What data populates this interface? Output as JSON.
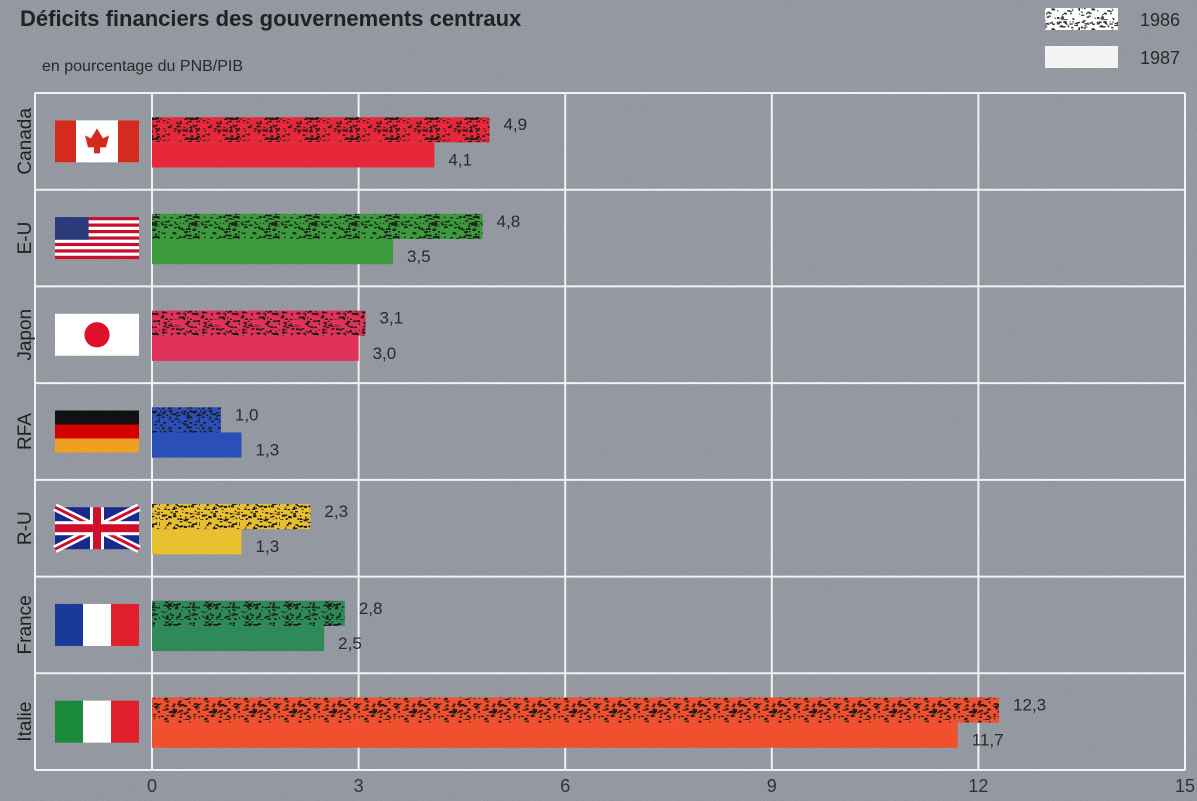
{
  "chart_data": {
    "type": "bar",
    "orientation": "horizontal",
    "title": "Déficits financiers des gouvernements centraux",
    "subtitle": "en pourcentage du PNB/PIB",
    "categories": [
      "Canada",
      "E-U",
      "Japon",
      "RFA",
      "R-U",
      "France",
      "Italie"
    ],
    "colors": [
      "#e8283a",
      "#3a9a3c",
      "#e03258",
      "#2a4fb8",
      "#e8c030",
      "#2e8a58",
      "#f0502e"
    ],
    "series": [
      {
        "name": "1986",
        "color": "#d8d8d8",
        "values": [
          4.9,
          4.8,
          3.1,
          1.0,
          2.3,
          2.8,
          12.3
        ],
        "value_labels": [
          "4,9",
          "4,8",
          "3,1",
          "1,0",
          "2,3",
          "2,8",
          "12,3"
        ]
      },
      {
        "name": "1987",
        "color": "#f4f4f4",
        "values": [
          4.1,
          3.5,
          3.0,
          1.3,
          1.3,
          2.5,
          11.7
        ],
        "value_labels": [
          "4,1",
          "3,5",
          "3,0",
          "1,3",
          "1,3",
          "2,5",
          "11,7"
        ]
      }
    ],
    "xlim": [
      0,
      15
    ],
    "xticks": [
      0,
      3,
      6,
      9,
      12,
      15
    ],
    "grid": true,
    "legend": "top-right"
  }
}
